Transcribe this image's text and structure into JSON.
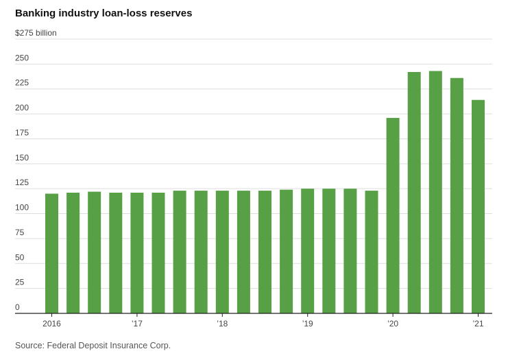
{
  "title": "Banking industry loan-loss reserves",
  "source": "Source: Federal Deposit Insurance Corp.",
  "colors": {
    "bar": "#57a045",
    "grid": "#dddddd",
    "axis": "#222222"
  },
  "chart_data": {
    "type": "bar",
    "title": "Banking industry loan-loss reserves",
    "xlabel": "",
    "ylabel": "",
    "ylim": [
      0,
      275
    ],
    "y_ticks": [
      0,
      25,
      50,
      75,
      100,
      125,
      150,
      175,
      200,
      225,
      250,
      275
    ],
    "y_tick_labels": [
      "0",
      "25",
      "50",
      "75",
      "100",
      "125",
      "150",
      "175",
      "200",
      "225",
      "250",
      "$275 billion"
    ],
    "x_tick_labels": [
      {
        "label": "2016",
        "index": 0
      },
      {
        "label": "’17",
        "index": 4
      },
      {
        "label": "’18",
        "index": 8
      },
      {
        "label": "’19",
        "index": 12
      },
      {
        "label": "’20",
        "index": 16
      },
      {
        "label": "’21",
        "index": 20
      }
    ],
    "categories": [
      "2016 Q1",
      "2016 Q2",
      "2016 Q3",
      "2016 Q4",
      "2017 Q1",
      "2017 Q2",
      "2017 Q3",
      "2017 Q4",
      "2018 Q1",
      "2018 Q2",
      "2018 Q3",
      "2018 Q4",
      "2019 Q1",
      "2019 Q2",
      "2019 Q3",
      "2019 Q4",
      "2020 Q1",
      "2020 Q2",
      "2020 Q3",
      "2020 Q4",
      "2021 Q1"
    ],
    "values": [
      120,
      121,
      122,
      121,
      121,
      121,
      123,
      123,
      123,
      123,
      123,
      124,
      125,
      125,
      125,
      123,
      196,
      242,
      243,
      236,
      214
    ],
    "grid": true
  }
}
